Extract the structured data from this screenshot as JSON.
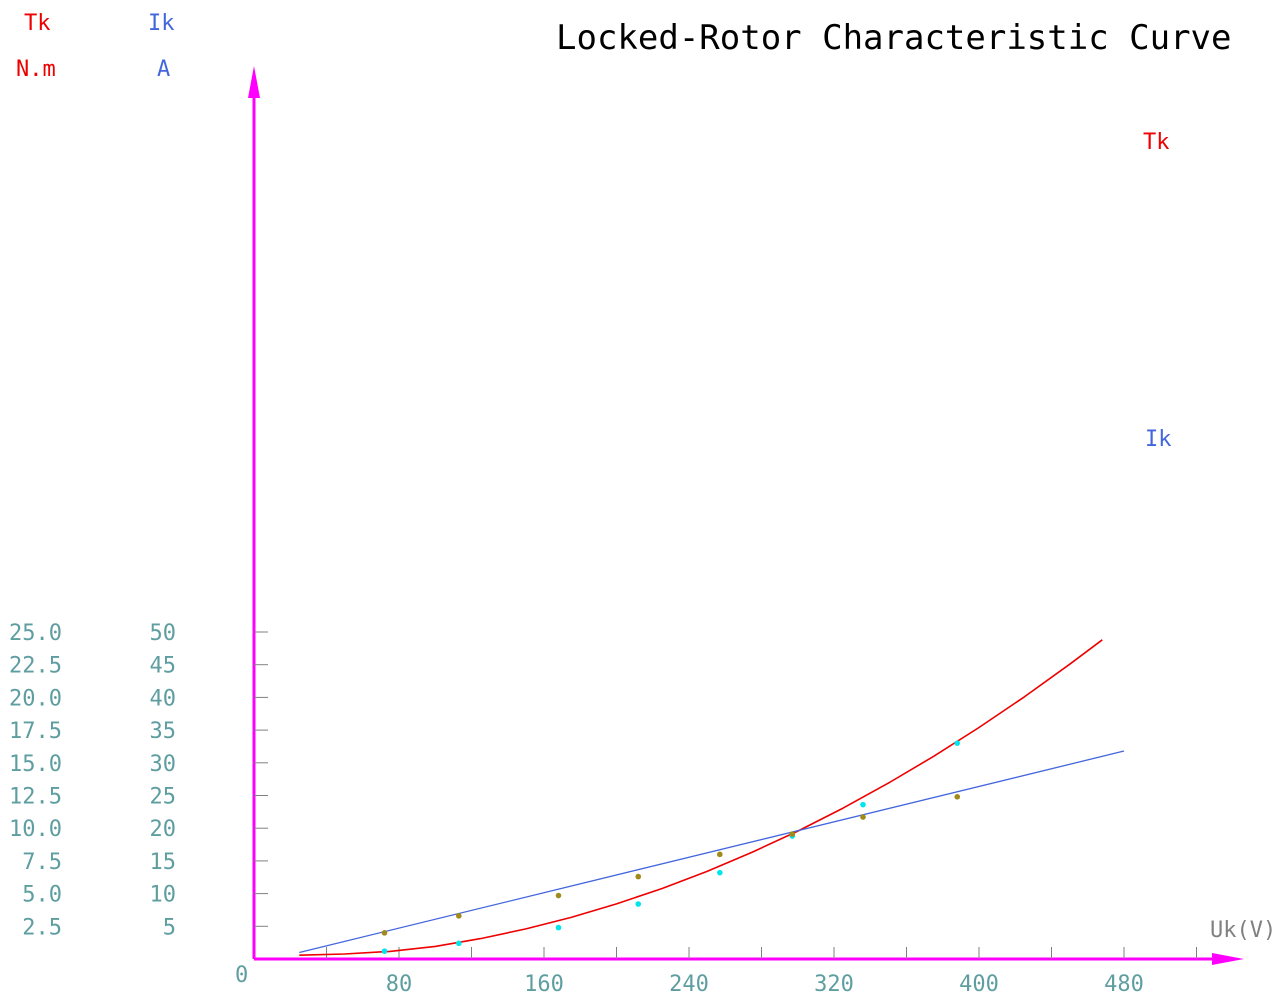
{
  "chart_data": {
    "type": "line",
    "title": "Locked-Rotor Characteristic Curve",
    "xlabel": "Uk(V)",
    "x_origin_label": "0",
    "xlim": [
      0,
      545
    ],
    "x_ticks": [
      80,
      160,
      240,
      320,
      400,
      480
    ],
    "x_minor_step": 40,
    "y_left": {
      "label": "Tk",
      "unit": "N.m",
      "ylim": [
        0,
        25
      ],
      "ticks": [
        "2.5",
        "5.0",
        "7.5",
        "10.0",
        "12.5",
        "15.0",
        "17.5",
        "20.0",
        "22.5",
        "25.0"
      ]
    },
    "y_right": {
      "label": "Ik",
      "unit": "A",
      "ylim": [
        0,
        50
      ],
      "ticks": [
        "5",
        "10",
        "15",
        "20",
        "25",
        "30",
        "35",
        "40",
        "45",
        "50"
      ]
    },
    "series": [
      {
        "name": "Tk",
        "axis": "left",
        "color": "#ee0000",
        "x": [
          25,
          50,
          75,
          100,
          125,
          150,
          175,
          200,
          225,
          250,
          275,
          300,
          325,
          350,
          375,
          400,
          425,
          450,
          468
        ],
        "y": [
          0.29,
          0.38,
          0.58,
          0.96,
          1.56,
          2.3,
          3.18,
          4.21,
          5.38,
          6.7,
          8.17,
          9.78,
          11.54,
          13.45,
          15.5,
          17.7,
          20.04,
          22.53,
          24.4
        ],
        "points_x": [
          72,
          113,
          168,
          212,
          257,
          297,
          336,
          388
        ],
        "points_y": [
          0.6,
          1.2,
          2.4,
          4.2,
          6.6,
          9.4,
          11.8,
          16.5
        ]
      },
      {
        "name": "Ik",
        "axis": "right",
        "color": "#4466dd",
        "x": [
          25,
          480
        ],
        "y": [
          1.0,
          31.8
        ],
        "points_x": [
          72,
          113,
          168,
          212,
          257,
          297,
          336,
          388
        ],
        "points_y": [
          4.0,
          6.6,
          9.7,
          12.6,
          16.0,
          19.1,
          21.7,
          24.8
        ]
      }
    ],
    "axis_color": "#ff00ff",
    "tick_color": "#5f9ea0",
    "marker_colors": {
      "Tk": "#00e5ee",
      "Ik": "#a08a1a"
    }
  }
}
